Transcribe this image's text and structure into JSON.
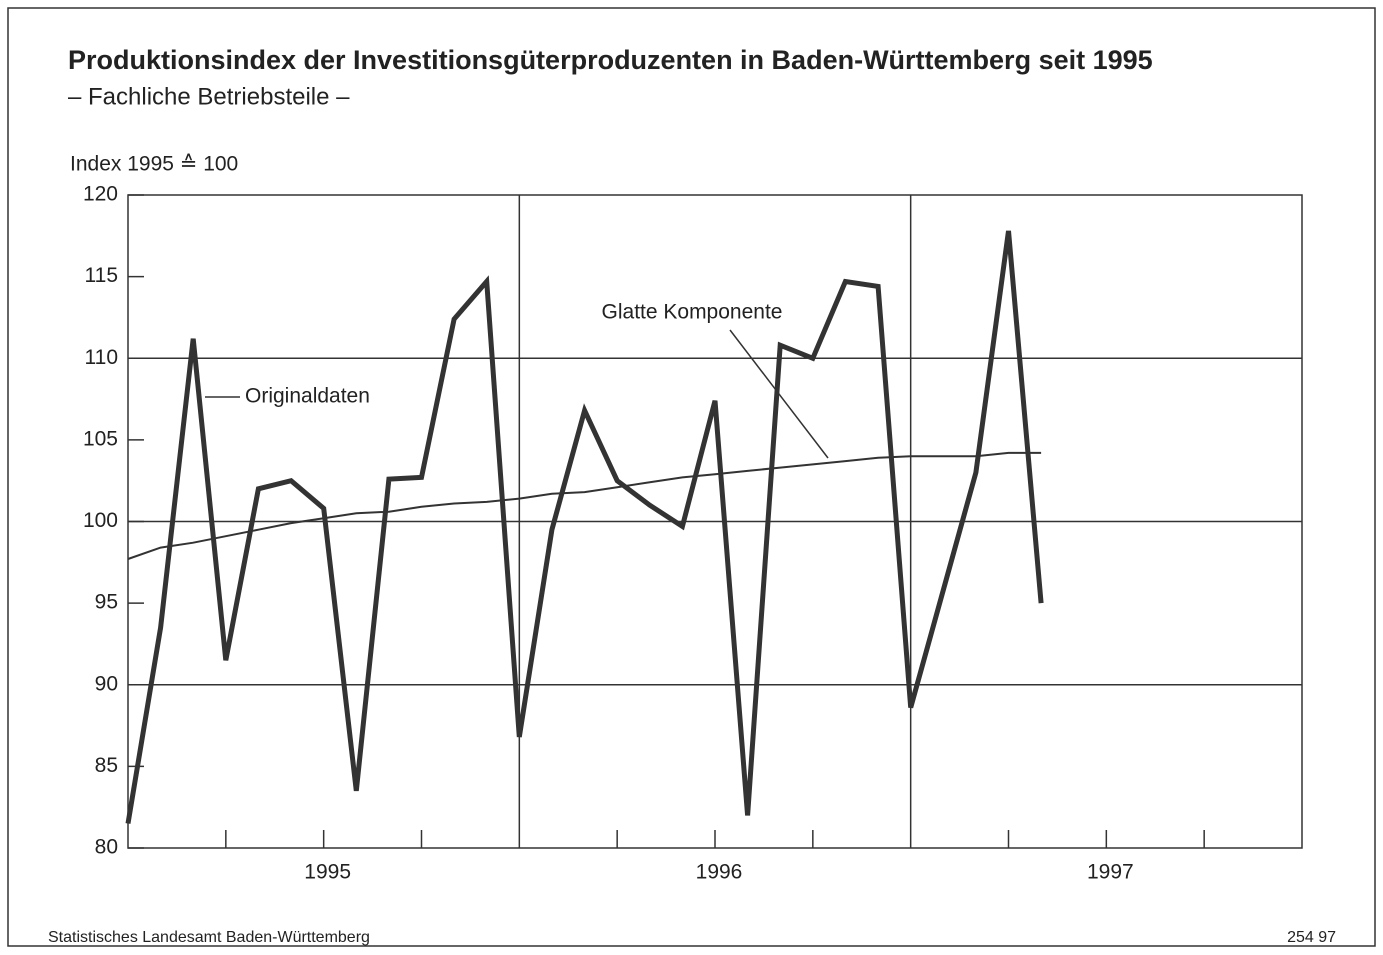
{
  "chart_data": {
    "type": "line",
    "title": "Produktionsindex der Investitionsgüterproduzenten in Baden-Württemberg seit 1995",
    "subtitle": "– Fachliche Betriebsteile –",
    "ylabel": "Index 1995 ≙ 100",
    "source": "Statistisches Landesamt Baden-Württemberg",
    "code": "254 97",
    "x": [
      1995,
      1995.0833,
      1995.1667,
      1995.25,
      1995.3333,
      1995.4167,
      1995.5,
      1995.5833,
      1995.6667,
      1995.75,
      1995.8333,
      1995.9167,
      1996,
      1996.0833,
      1996.1667,
      1996.25,
      1996.3333,
      1996.4167,
      1996.5,
      1996.5833,
      1996.6667,
      1996.75,
      1996.8333,
      1996.9167,
      1997,
      1997.0833,
      1997.1667,
      1997.25,
      1997.3333
    ],
    "series": [
      {
        "name": "Originaldaten",
        "color": "#333333",
        "values": [
          81.5,
          93.5,
          111.2,
          91.5,
          102,
          102.5,
          100.8,
          83.5,
          102.6,
          102.7,
          112.4,
          114.7,
          86.8,
          99.5,
          106.8,
          102.5,
          101,
          99.7,
          107.4,
          82,
          110.8,
          110,
          114.7,
          114.4,
          88.6,
          95.8,
          103,
          117.8,
          95
        ]
      },
      {
        "name": "Glatte Komponente",
        "color": "#333333",
        "values": [
          97.7,
          98.4,
          98.7,
          99.1,
          99.5,
          99.9,
          100.2,
          100.5,
          100.6,
          100.9,
          101.1,
          101.2,
          101.4,
          101.7,
          101.8,
          102.1,
          102.4,
          102.7,
          102.9,
          103.1,
          103.3,
          103.5,
          103.7,
          103.9,
          104,
          104,
          104,
          104.2,
          104.2
        ]
      }
    ],
    "xlim": [
      1995,
      1998
    ],
    "xticks": [
      {
        "value": 1995.5,
        "label": "1995"
      },
      {
        "value": 1996.5,
        "label": "1996"
      },
      {
        "value": 1997.5,
        "label": "1997"
      }
    ],
    "xminorticks": [
      1995.25,
      1995.5,
      1995.75,
      1996.25,
      1996.5,
      1996.75,
      1997.25,
      1997.5,
      1997.75
    ],
    "xgrid": [
      1996,
      1997
    ],
    "ylim": [
      80,
      120
    ],
    "yticks": [
      80,
      85,
      90,
      95,
      100,
      105,
      110,
      115,
      120
    ],
    "ygrid": [
      90,
      100,
      110
    ]
  }
}
